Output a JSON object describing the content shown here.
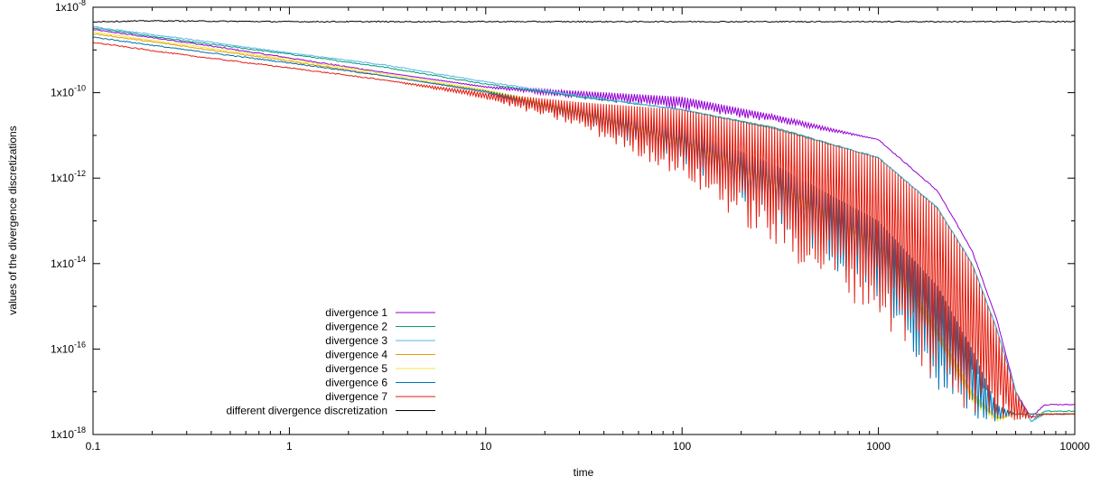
{
  "chart_data": {
    "type": "line",
    "title": "",
    "xlabel": "time",
    "ylabel": "values of the divergence discretizations",
    "x_scale": "log",
    "y_scale": "log",
    "xlim": [
      0.1,
      10000
    ],
    "ylim": [
      1e-18,
      1e-08
    ],
    "grid": false,
    "legend_position": "bottom-center",
    "x_ticks": [
      "0.1",
      "1",
      "10",
      "100",
      "1000",
      "10000"
    ],
    "y_ticks": [
      {
        "mantissa": "1x10",
        "exp": "-18",
        "value": 1e-18
      },
      {
        "mantissa": "1x10",
        "exp": "-16",
        "value": 1e-16
      },
      {
        "mantissa": "1x10",
        "exp": "-14",
        "value": 1e-14
      },
      {
        "mantissa": "1x10",
        "exp": "-12",
        "value": 1e-12
      },
      {
        "mantissa": "1x10",
        "exp": "-10",
        "value": 1e-10
      },
      {
        "mantissa": "1x10",
        "exp": "-8",
        "value": 1e-08
      }
    ],
    "series": [
      {
        "name": "divergence 1",
        "color": "#9400d3",
        "x": [
          0.1,
          0.3,
          1,
          3,
          10,
          30,
          100,
          300,
          1000,
          2000,
          3000,
          4000,
          5000,
          6000,
          7000,
          10000
        ],
        "upper": [
          3e-09,
          1.5e-09,
          6.5e-10,
          3e-10,
          1.4e-10,
          1.1e-10,
          8e-11,
          3e-11,
          8e-12,
          5e-13,
          2e-14,
          5e-16,
          1e-17,
          2.5e-18,
          5e-18,
          5e-18
        ],
        "lower": [
          3e-09,
          1.5e-09,
          6.5e-10,
          3e-10,
          1.3e-10,
          7e-11,
          4e-11,
          2e-11,
          8e-12,
          5e-13,
          2e-14,
          5e-16,
          1e-17,
          2.5e-18,
          5e-18,
          5e-18
        ]
      },
      {
        "name": "divergence 2",
        "color": "#009e73",
        "x": [
          0.1,
          0.3,
          1,
          3,
          10,
          30,
          100,
          300,
          1000,
          2000,
          3000,
          4000,
          5000,
          6000,
          7000,
          10000
        ],
        "upper": [
          3.3e-09,
          1.6e-09,
          8e-10,
          4e-10,
          1.6e-10,
          8e-11,
          4e-11,
          1.5e-11,
          3e-12,
          2e-13,
          1e-14,
          3e-16,
          1e-17,
          2e-18,
          3.5e-18,
          3.5e-18
        ],
        "lower": [
          3.3e-09,
          1.6e-09,
          8e-10,
          4e-10,
          1.6e-10,
          8e-11,
          4e-11,
          1.5e-11,
          3e-12,
          2e-13,
          1e-14,
          3e-16,
          1e-17,
          2e-18,
          3.5e-18,
          3.5e-18
        ]
      },
      {
        "name": "divergence 3",
        "color": "#56b4e9",
        "x": [
          0.1,
          0.3,
          1,
          3,
          10,
          30,
          100,
          300,
          1000,
          2000,
          3000,
          4000,
          5000,
          6000,
          7000,
          10000
        ],
        "upper": [
          3.5e-09,
          1.8e-09,
          8.5e-10,
          4.5e-10,
          1.8e-10,
          8.5e-11,
          4e-11,
          1.4e-11,
          3e-12,
          2e-13,
          1e-14,
          3e-16,
          1e-17,
          2e-18,
          3e-18,
          3e-18
        ],
        "lower": [
          3.5e-09,
          1.8e-09,
          8.5e-10,
          4.5e-10,
          1.8e-10,
          8.5e-11,
          4e-11,
          1.4e-11,
          3e-12,
          2e-13,
          1e-14,
          3e-16,
          1e-17,
          2e-18,
          3e-18,
          3e-18
        ]
      },
      {
        "name": "divergence 4",
        "color": "#e69f00",
        "x": [
          0.1,
          0.3,
          1,
          3,
          10,
          30,
          100,
          300,
          1000,
          2000,
          3000,
          4000,
          5000,
          6000,
          7000,
          10000
        ],
        "upper": [
          2.4e-09,
          1.2e-09,
          5.5e-10,
          2.5e-10,
          1.1e-10,
          4e-11,
          1e-11,
          1e-12,
          5e-14,
          3e-16,
          1e-17,
          2.5e-18,
          3e-18,
          3e-18,
          3e-18,
          3e-18
        ],
        "lower": [
          2.4e-09,
          1.2e-09,
          5.5e-10,
          2.5e-10,
          1.1e-10,
          3e-11,
          5e-12,
          5e-13,
          1e-14,
          1e-16,
          5e-18,
          2e-18,
          3e-18,
          3e-18,
          3e-18,
          3e-18
        ]
      },
      {
        "name": "divergence 5",
        "color": "#f0e442",
        "x": [
          0.1,
          0.3,
          1,
          3,
          10,
          30,
          100,
          300,
          1000,
          2000,
          3000,
          4000,
          5000,
          6000,
          7000,
          10000
        ],
        "upper": [
          2.6e-09,
          1.3e-09,
          6e-10,
          2.8e-10,
          1.2e-10,
          4e-11,
          1e-11,
          1e-12,
          5e-14,
          3e-16,
          1e-17,
          2.5e-18,
          3e-18,
          3e-18,
          3e-18,
          3e-18
        ],
        "lower": [
          2.6e-09,
          1.3e-09,
          6e-10,
          2.8e-10,
          1.1e-10,
          3e-11,
          5e-12,
          5e-13,
          1e-14,
          1e-16,
          5e-18,
          2e-18,
          3e-18,
          3e-18,
          3e-18,
          3e-18
        ]
      },
      {
        "name": "divergence 6",
        "color": "#0072b2",
        "x": [
          0.1,
          0.3,
          1,
          3,
          10,
          30,
          100,
          300,
          1000,
          2000,
          3000,
          4000,
          5000,
          6000,
          7000,
          10000
        ],
        "upper": [
          2e-09,
          1e-09,
          5e-10,
          2.5e-10,
          1.1e-10,
          4.5e-11,
          1.5e-11,
          2e-12,
          1e-13,
          3e-15,
          1e-16,
          5e-18,
          3e-18,
          3e-18,
          3e-18,
          3e-18
        ],
        "lower": [
          2e-09,
          1e-09,
          5e-10,
          2.5e-10,
          1e-10,
          2e-11,
          2e-12,
          1e-13,
          1e-15,
          1e-17,
          2e-18,
          2e-18,
          3e-18,
          3e-18,
          3e-18,
          3e-18
        ]
      },
      {
        "name": "divergence 7",
        "color": "#e51e10",
        "x": [
          0.1,
          0.3,
          1,
          3,
          10,
          30,
          100,
          300,
          1000,
          2000,
          3000,
          4000,
          5000,
          6000,
          7000,
          10000
        ],
        "upper": [
          1.5e-09,
          7.5e-10,
          3.8e-10,
          2e-10,
          1e-10,
          6e-11,
          4e-11,
          1.5e-11,
          3e-12,
          2e-13,
          1e-14,
          3e-16,
          1e-17,
          2.5e-18,
          3e-18,
          3e-18
        ],
        "lower": [
          1.5e-09,
          7.5e-10,
          3.8e-10,
          2e-10,
          7e-11,
          1.5e-11,
          1e-12,
          2e-14,
          5e-16,
          1e-17,
          3e-18,
          2e-18,
          2e-18,
          2.5e-18,
          3e-18,
          3e-18
        ]
      },
      {
        "name": "different divergence discretization",
        "color": "#000000",
        "x": [
          0.1,
          0.2,
          1,
          10,
          100,
          1000,
          10000
        ],
        "upper": [
          4.6e-09,
          4.8e-09,
          4.6e-09,
          4.6e-09,
          4.6e-09,
          4.6e-09,
          4.6e-09
        ],
        "lower": [
          4.6e-09,
          4.8e-09,
          4.6e-09,
          4.6e-09,
          4.6e-09,
          4.6e-09,
          4.6e-09
        ]
      }
    ]
  }
}
